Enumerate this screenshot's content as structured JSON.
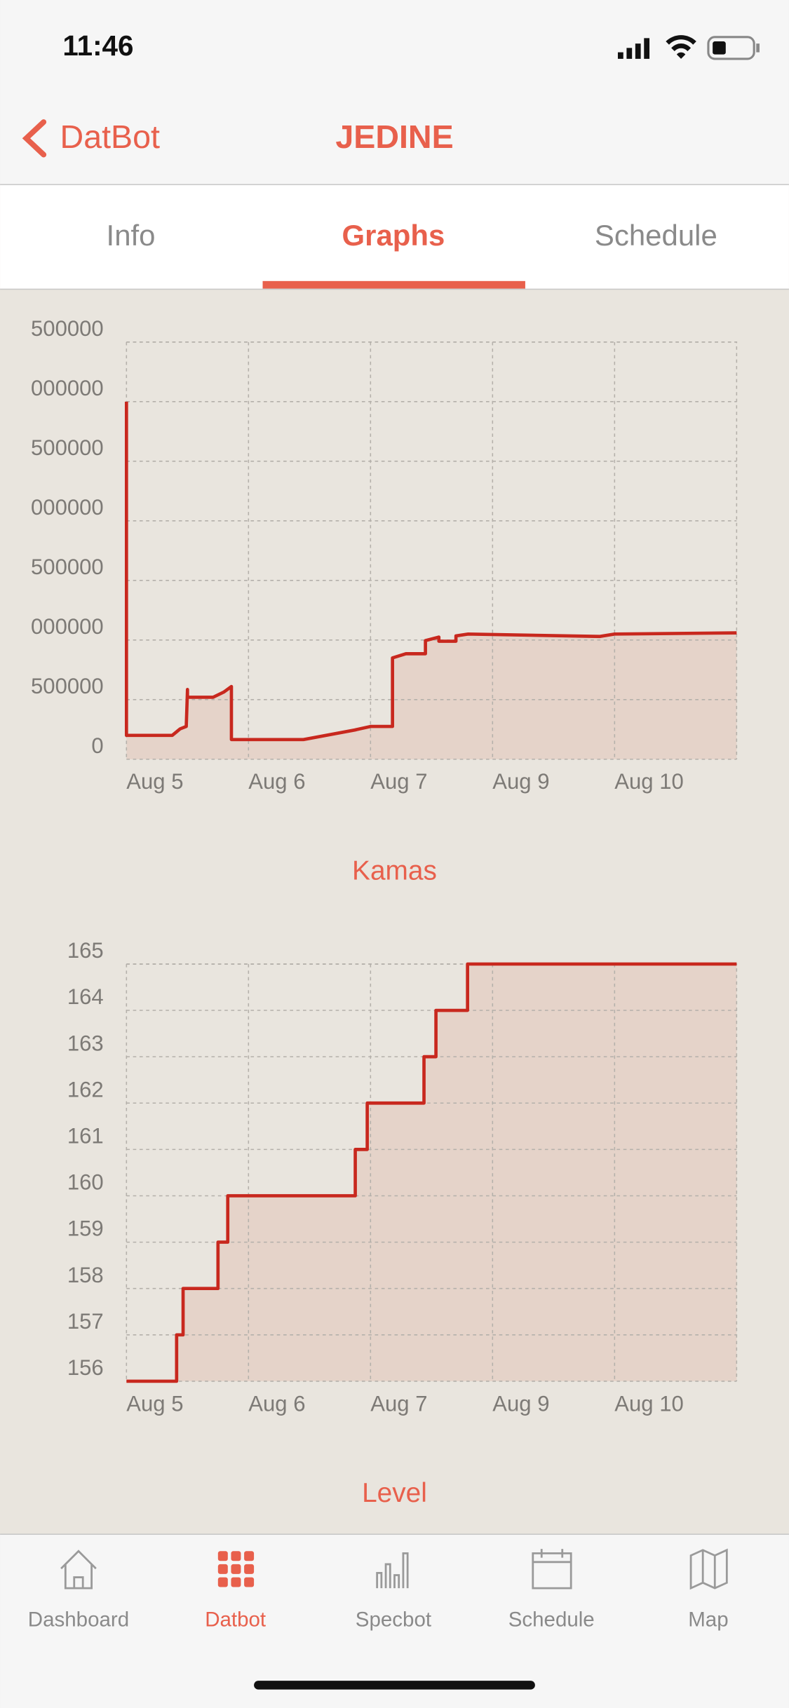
{
  "status_bar": {
    "time": "11:46"
  },
  "nav": {
    "back": "DatBot",
    "title": "JEDINE"
  },
  "tabs": [
    "Info",
    "Graphs",
    "Schedule"
  ],
  "chart_data": [
    {
      "type": "line",
      "title": "Kamas",
      "color": "#c8281e",
      "fill": "#e5d3c9",
      "grid": true,
      "xlim": [
        0,
        5
      ],
      "xticks": [
        {
          "value": 0,
          "label": "Aug 5"
        },
        {
          "value": 1,
          "label": "Aug 6"
        },
        {
          "value": 2,
          "label": "Aug 7"
        },
        {
          "value": 3,
          "label": "Aug 9"
        },
        {
          "value": 4,
          "label": "Aug 10"
        }
      ],
      "ylim": [
        0,
        3500000
      ],
      "yticks": [
        0,
        {
          "value": 500000,
          "label": "500000"
        },
        {
          "value": 1000000,
          "label": "000000"
        },
        {
          "value": 1500000,
          "label": "500000"
        },
        {
          "value": 2000000,
          "label": "000000"
        },
        {
          "value": 2500000,
          "label": "500000"
        },
        {
          "value": 3000000,
          "label": "000000"
        },
        {
          "value": 3500000,
          "label": "500000"
        }
      ],
      "x": [
        0,
        0,
        0.375,
        0.44,
        0.49,
        0.5,
        0.5,
        0.71,
        0.8,
        0.86,
        0.86,
        1.45,
        1.87,
        2,
        2.18,
        2.18,
        2.29,
        2.45,
        2.45,
        2.56,
        2.56,
        2.7,
        2.7,
        2.8,
        3.88,
        4,
        5
      ],
      "values": [
        3000000,
        200000,
        200000,
        255000,
        275000,
        585000,
        520000,
        520000,
        565000,
        610000,
        165000,
        165000,
        245000,
        275000,
        275000,
        850000,
        885000,
        885000,
        995000,
        1025000,
        990000,
        990000,
        1035000,
        1050000,
        1030000,
        1050000,
        1060000
      ]
    },
    {
      "type": "line",
      "title": "Level",
      "color": "#c8281e",
      "fill": "#e5d3c9",
      "grid": true,
      "xlim": [
        0,
        5
      ],
      "xticks": [
        {
          "value": 0,
          "label": "Aug 5"
        },
        {
          "value": 1,
          "label": "Aug 6"
        },
        {
          "value": 2,
          "label": "Aug 7"
        },
        {
          "value": 3,
          "label": "Aug 9"
        },
        {
          "value": 4,
          "label": "Aug 10"
        }
      ],
      "ylim": [
        156,
        165
      ],
      "yticks": [
        156,
        157,
        158,
        159,
        160,
        161,
        162,
        163,
        164,
        165
      ],
      "x": [
        0,
        0.411,
        0.411,
        0.464,
        0.464,
        0.75,
        0.75,
        0.83,
        0.83,
        1.875,
        1.875,
        1.973,
        1.973,
        2.438,
        2.438,
        2.536,
        2.536,
        2.795,
        2.795,
        5
      ],
      "values": [
        156,
        156,
        157,
        157,
        158,
        158,
        159,
        159,
        160,
        160,
        161,
        161,
        162,
        162,
        163,
        163,
        164,
        164,
        165,
        165
      ]
    }
  ],
  "tab_bar": [
    "Dashboard",
    "Datbot",
    "Specbot",
    "Schedule",
    "Map"
  ]
}
